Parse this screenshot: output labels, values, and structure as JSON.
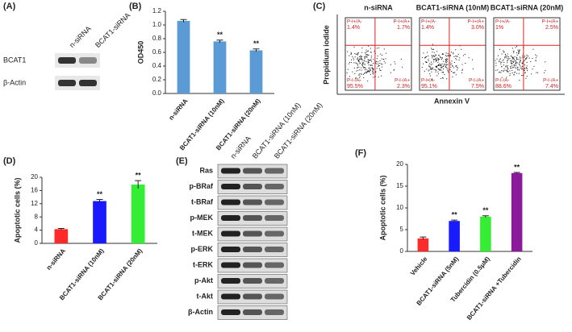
{
  "panel_labels": [
    "(A)",
    "(B)",
    "(C)",
    "(D)",
    "(E)",
    "(F)"
  ],
  "blot_a": {
    "lanes": [
      "n-siRNA",
      "BCAT1-siRNA"
    ],
    "rows": [
      "BCAT1",
      "β-Actin"
    ]
  },
  "flow_c": {
    "y_label": "Propidium iodide",
    "x_label": "Annexin V",
    "quadrant_names": [
      "P-I+/A-",
      "P-I+/A+",
      "P-I-/A-",
      "P-I-/A+"
    ],
    "plots": [
      {
        "title": "n-siRNA",
        "quadrants": [
          "1.4%",
          "1.7%",
          "95.5%",
          "2.3%"
        ]
      },
      {
        "title": "BCAT1-siRNA (10nM)",
        "quadrants": [
          "1.4%",
          "3.0%",
          "95.1%",
          "7.5%"
        ]
      },
      {
        "title": "BCAT1-siRNA (20nM)",
        "quadrants": [
          "1%",
          "2.5%",
          "88.6%",
          "7.4%"
        ]
      }
    ]
  },
  "blot_e": {
    "lanes": [
      "n-siRNA",
      "BCAT1-siRNA (10nM)",
      "BCAT1-siRNA (20nM)"
    ],
    "rows": [
      "Ras",
      "p-BRaf",
      "t-BRaf",
      "p-MEK",
      "t-MEK",
      "p-ERK",
      "t-ERK",
      "p-Akt",
      "t-Akt",
      "β-Actin"
    ]
  },
  "chart_data": [
    {
      "type": "bar",
      "y_label": "OD450",
      "categories": [
        "n-siRNA",
        "BCAT1-siRNA (10nM)",
        "BCAT1-siRNA (20nM)"
      ],
      "values": [
        1.06,
        0.76,
        0.63
      ],
      "errors": [
        0.02,
        0.02,
        0.02
      ],
      "annotations": [
        null,
        "**",
        "**"
      ],
      "color": "#5b9bd5",
      "ylim": [
        0,
        1.2
      ],
      "yticks": [
        {
          "value": 0,
          "label": "0.0"
        },
        0.2,
        0.4,
        0.6,
        0.8,
        {
          "value": 1,
          "label": "1.0"
        },
        1.2
      ]
    },
    {
      "type": "bar",
      "y_label": "Apoptotic cells (%)",
      "categories": [
        "n-siRNA",
        "BCAT1-siRNA (10nM)",
        "BCAT1-siRNA (20nM)"
      ],
      "values": [
        4.3,
        12.8,
        17.8
      ],
      "errors": [
        0.2,
        0.5,
        1.2
      ],
      "annotations": [
        null,
        "**",
        "**"
      ],
      "colors": [
        "#ff2a2a",
        "#1a1aff",
        "#33ee33"
      ],
      "ylim": [
        0,
        20
      ],
      "yticks": [
        0,
        4,
        8,
        12,
        16,
        20
      ]
    },
    {
      "type": "bar",
      "y_label": "Apoptotic cells (%)",
      "categories": [
        "Vehicle",
        "BCAT1-siRNA (5nM)",
        "Tubercidin (0.5μM)",
        "BCAT1-siRNA +Tubercidin"
      ],
      "values": [
        3.0,
        7.0,
        8.0,
        18.0
      ],
      "errors": [
        0.3,
        0.2,
        0.2,
        0.15
      ],
      "annotations": [
        null,
        "**",
        "**",
        "**"
      ],
      "colors": [
        "#ff2a2a",
        "#1a1aff",
        "#33ee33",
        "#8b1a9b"
      ],
      "ylim": [
        0,
        20
      ],
      "yticks": [
        0,
        5,
        10,
        15,
        20
      ]
    }
  ]
}
